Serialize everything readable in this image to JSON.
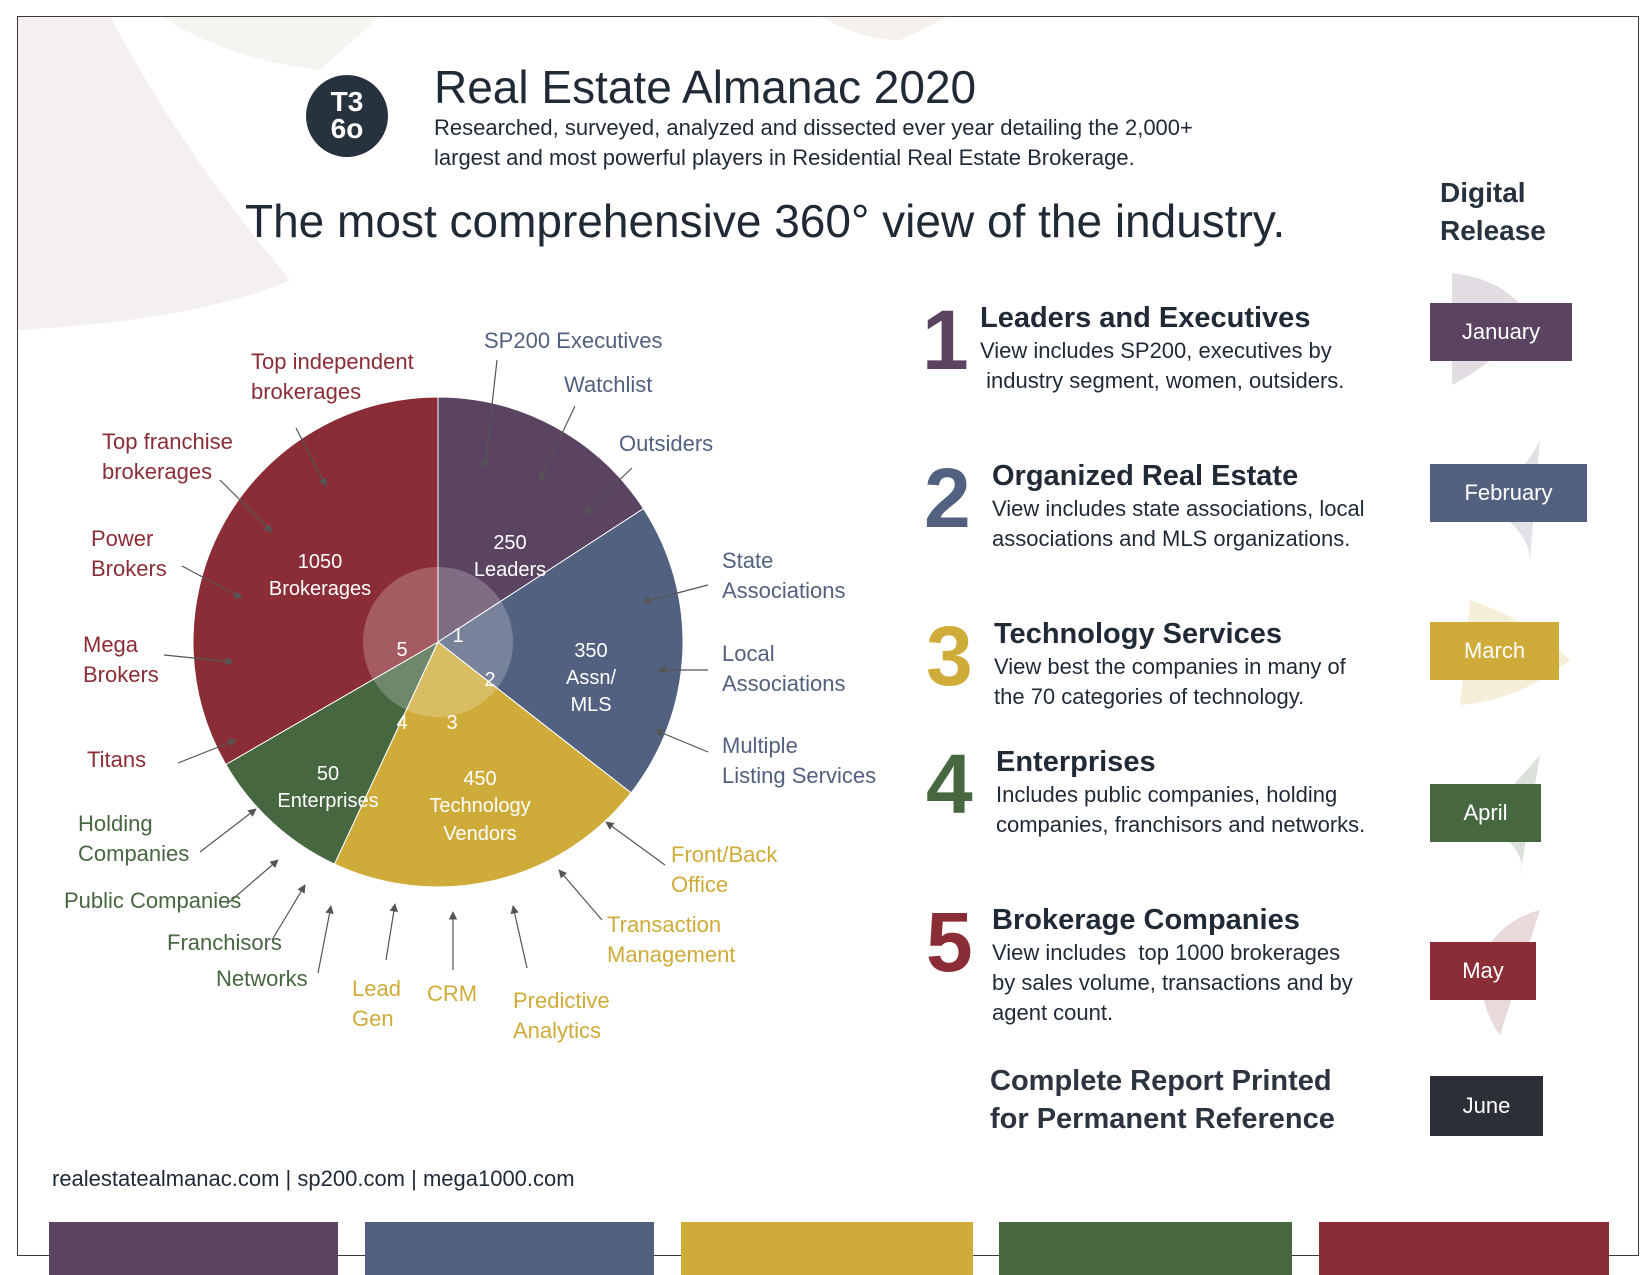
{
  "header": {
    "logo_line1": "T3",
    "logo_line2": "6o",
    "title": "Real Estate Almanac 2020",
    "subtitle": "Researched, surveyed, analyzed and dissected ever year detailing the 2,000+ largest and most powerful players in Residential Real Estate Brokerage.",
    "headline": "The most comprehensive 360° view of the industry."
  },
  "release": {
    "heading_line1": "Digital",
    "heading_line2": "Release",
    "final_line1": "Complete Report Printed",
    "final_line2": "for Permanent Reference",
    "final_month": "June"
  },
  "sections": [
    {
      "number": "1",
      "title": "Leaders and Executives",
      "desc_line1": "View includes SP200, executives by",
      "desc_line2": " industry segment, women, outsiders.",
      "desc_line3": "",
      "month": "January",
      "color": "#5b4462"
    },
    {
      "number": "2",
      "title": "Organized Real Estate",
      "desc_line1": "View includes state associations, local",
      "desc_line2": "associations and MLS organizations.",
      "desc_line3": "",
      "month": "February",
      "color": "#52617f"
    },
    {
      "number": "3",
      "title": "Technology Services",
      "desc_line1": "View best the companies in many of",
      "desc_line2": "the 70 categories of technology.",
      "desc_line3": "",
      "month": "March",
      "color": "#cfab3a"
    },
    {
      "number": "4",
      "title": "Enterprises",
      "desc_line1": "Includes public companies, holding",
      "desc_line2": "companies, franchisors and networks.",
      "desc_line3": "",
      "month": "April",
      "color": "#476741"
    },
    {
      "number": "5",
      "title": "Brokerage Companies",
      "desc_line1": "View includes  top 1000 brokerages",
      "desc_line2": "by sales volume, transactions and by",
      "desc_line3": "agent count.",
      "month": "May",
      "color": "#8b2d36"
    }
  ],
  "colors": {
    "june": "#2c3036",
    "dark": "#27323f"
  },
  "footer": {
    "links": "realestatealmanac.com | sp200.com | mega1000.com",
    "bar_colors": [
      "#5b4462",
      "#52617f",
      "#cfab3a",
      "#476741",
      "#8b2d36"
    ]
  },
  "chart_data": {
    "type": "pie",
    "slices": [
      {
        "id": "1",
        "value_label": "250",
        "label": "Leaders",
        "color": "#5b4462"
      },
      {
        "id": "2",
        "value_label": "350",
        "label": "Assn/ MLS",
        "color": "#52617f"
      },
      {
        "id": "3",
        "value_label": "450",
        "label": "Technology Vendors",
        "color": "#cfab3a"
      },
      {
        "id": "4",
        "value_label": "50",
        "label": "Enterprises",
        "color": "#476741"
      },
      {
        "id": "5",
        "value_label": "1050",
        "label": "Brokerages",
        "color": "#8b2d36"
      }
    ],
    "annotations": {
      "sp200": "SP200 Executives",
      "watchlist": "Watchlist",
      "outsiders": "Outsiders",
      "state1": "State",
      "state2": "Associations",
      "local1": "Local",
      "local2": "Associations",
      "mls1": "Multiple",
      "mls2": "Listing Services",
      "front1": "Front/Back",
      "front2": "Office",
      "trans1": "Transaction",
      "trans2": "Management",
      "pred1": "Predictive",
      "pred2": "Analytics",
      "crm": "CRM",
      "lead1": "Lead",
      "lead2": "Gen",
      "networks": "Networks",
      "franchisors": "Franchisors",
      "public": "Public Companies",
      "holding1": "Holding",
      "holding2": "Companies",
      "titans": "Titans",
      "mega1": "Mega",
      "mega2": "Brokers",
      "power1": "Power",
      "power2": "Brokers",
      "topfr1": "Top franchise",
      "topfr2": "brokerages",
      "topind1": "Top independent",
      "topind2": "brokerages"
    }
  }
}
